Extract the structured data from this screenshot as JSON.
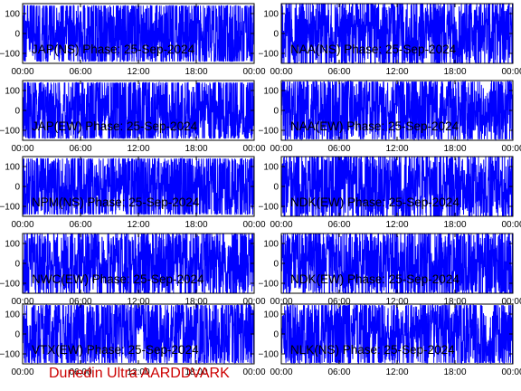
{
  "colors": {
    "trace": "#0000ff",
    "axis": "#000000",
    "footer": "#cc0000",
    "background": "#ffffff"
  },
  "footer": {
    "label": "Dunedin Ultra AARDDVARK"
  },
  "chart_data": [
    {
      "type": "line",
      "title": "JAP(NS) Phase: 25-Sep-2024",
      "x_ticks": [
        "00:00",
        "06:00",
        "12:00",
        "18:00",
        "00:00"
      ],
      "y_ticks": [
        100,
        0,
        -100
      ],
      "ylim": [
        -150,
        150
      ],
      "xlim_hours": [
        0,
        24
      ],
      "series": [
        {
          "envelope": 140,
          "density": 0.9
        }
      ]
    },
    {
      "type": "line",
      "title": "NAA(NS) Phase: 25-Sep-2024",
      "x_ticks": [
        "00:00",
        "06:00",
        "12:00",
        "18:00",
        "00:00"
      ],
      "y_ticks": [
        100,
        0,
        -100
      ],
      "ylim": [
        -150,
        150
      ],
      "xlim_hours": [
        0,
        24
      ],
      "series": [
        {
          "envelope": 150,
          "density": 0.85
        }
      ]
    },
    {
      "type": "line",
      "title": "JAP(EW) Phase: 25-Sep-2024",
      "x_ticks": [
        "00:00",
        "06:00",
        "12:00",
        "18:00",
        "00:00"
      ],
      "y_ticks": [
        100,
        0,
        -100
      ],
      "ylim": [
        -150,
        150
      ],
      "xlim_hours": [
        0,
        24
      ],
      "series": [
        {
          "envelope": 140,
          "density": 0.8
        }
      ]
    },
    {
      "type": "line",
      "title": "NAA(EW) Phase: 25-Sep-2024",
      "x_ticks": [
        "00:00",
        "06:00",
        "12:00",
        "18:00",
        "00:00"
      ],
      "y_ticks": [
        100,
        0,
        -100
      ],
      "ylim": [
        -150,
        150
      ],
      "xlim_hours": [
        0,
        24
      ],
      "series": [
        {
          "envelope": 145,
          "density": 0.8
        }
      ]
    },
    {
      "type": "line",
      "title": "NPM(NS) Phase: 25-Sep-2024",
      "x_ticks": [
        "00:00",
        "06:00",
        "12:00",
        "18:00",
        "00:00"
      ],
      "y_ticks": [
        100,
        0,
        -100
      ],
      "ylim": [
        -150,
        150
      ],
      "xlim_hours": [
        0,
        24
      ],
      "series": [
        {
          "envelope": 140,
          "density": 0.85
        }
      ]
    },
    {
      "type": "line",
      "title": "NDK(EW) Phase: 25-Sep-2024",
      "x_ticks": [
        "00:00",
        "06:00",
        "12:00",
        "18:00",
        "00:00"
      ],
      "y_ticks": [
        100,
        0,
        -100
      ],
      "ylim": [
        -150,
        150
      ],
      "xlim_hours": [
        0,
        24
      ],
      "series": [
        {
          "envelope": 150,
          "density": 0.85
        }
      ]
    },
    {
      "type": "line",
      "title": "NWC(EW) Phase: 25-Sep-2024",
      "x_ticks": [
        "00:00",
        "06:00",
        "12:00",
        "18:00",
        "00:00"
      ],
      "y_ticks": [
        100,
        0,
        -100
      ],
      "ylim": [
        -150,
        150
      ],
      "xlim_hours": [
        0,
        24
      ],
      "series": [
        {
          "envelope": 150,
          "density": 0.85
        }
      ]
    },
    {
      "type": "line",
      "title": "NDK(EW) Phase: 25-Sep-2024",
      "x_ticks": [
        "00:00",
        "06:00",
        "12:00",
        "18:00",
        "00:00"
      ],
      "y_ticks": [
        100,
        0,
        -100
      ],
      "ylim": [
        -150,
        150
      ],
      "xlim_hours": [
        0,
        24
      ],
      "series": [
        {
          "envelope": 150,
          "density": 0.85
        }
      ]
    },
    {
      "type": "line",
      "title": "VTX(EW) Phase: 25-Sep-2024",
      "x_ticks": [
        "00:00",
        "06:00",
        "12:00",
        "18:00",
        "00:00"
      ],
      "y_ticks": [
        100,
        0,
        -100
      ],
      "ylim": [
        -150,
        150
      ],
      "xlim_hours": [
        0,
        24
      ],
      "series": [
        {
          "envelope": 145,
          "density": 0.8
        }
      ]
    },
    {
      "type": "line",
      "title": "NLK(NS) Phase: 25-Sep-2024",
      "x_ticks": [
        "00:00",
        "06:00",
        "12:00",
        "18:00",
        "00:00"
      ],
      "y_ticks": [
        100,
        0,
        -100
      ],
      "ylim": [
        -150,
        150
      ],
      "xlim_hours": [
        0,
        24
      ],
      "series": [
        {
          "envelope": 145,
          "density": 0.85
        }
      ]
    }
  ]
}
